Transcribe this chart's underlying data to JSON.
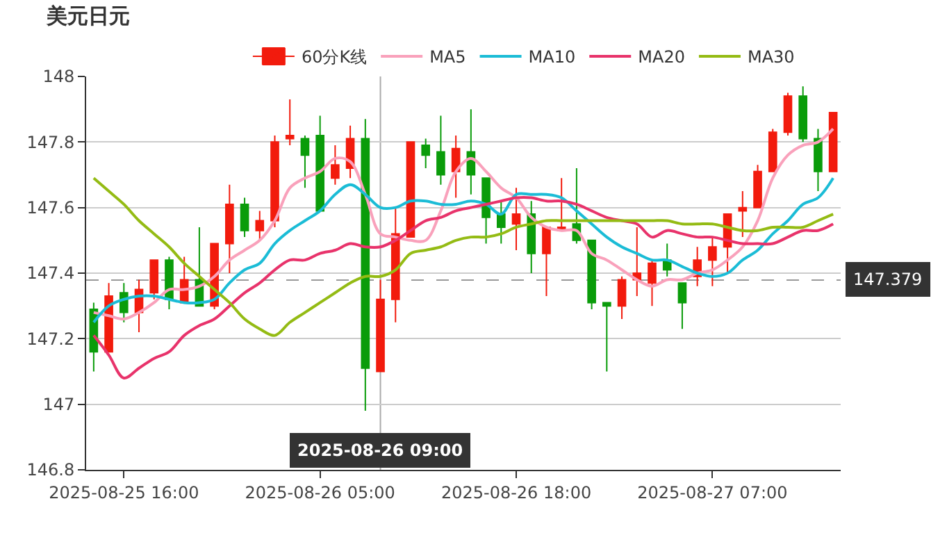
{
  "chart_data": {
    "type": "candlestick",
    "title": "美元日元",
    "x": [
      "2025-08-25T14:00",
      "2025-08-25T15:00",
      "2025-08-25T16:00",
      "2025-08-25T17:00",
      "2025-08-25T18:00",
      "2025-08-25T19:00",
      "2025-08-25T20:00",
      "2025-08-25T21:00",
      "2025-08-25T22:00",
      "2025-08-25T23:00",
      "2025-08-26T00:00",
      "2025-08-26T01:00",
      "2025-08-26T02:00",
      "2025-08-26T03:00",
      "2025-08-26T04:00",
      "2025-08-26T05:00",
      "2025-08-26T06:00",
      "2025-08-26T07:00",
      "2025-08-26T08:00",
      "2025-08-26T09:00",
      "2025-08-26T10:00",
      "2025-08-26T11:00",
      "2025-08-26T12:00",
      "2025-08-26T13:00",
      "2025-08-26T14:00",
      "2025-08-26T15:00",
      "2025-08-26T16:00",
      "2025-08-26T17:00",
      "2025-08-26T18:00",
      "2025-08-26T19:00",
      "2025-08-26T20:00",
      "2025-08-26T21:00",
      "2025-08-26T22:00",
      "2025-08-26T23:00",
      "2025-08-27T00:00",
      "2025-08-27T01:00",
      "2025-08-27T02:00",
      "2025-08-27T03:00",
      "2025-08-27T04:00",
      "2025-08-27T05:00",
      "2025-08-27T06:00",
      "2025-08-27T07:00",
      "2025-08-27T08:00",
      "2025-08-27T09:00",
      "2025-08-27T10:00",
      "2025-08-27T11:00",
      "2025-08-27T12:00",
      "2025-08-27T13:00",
      "2025-08-27T14:00",
      "2025-08-27T15:00"
    ],
    "xlim": [
      "2025-08-25T13:30",
      "2025-08-27T15:30"
    ],
    "xticks": [
      {
        "value": "2025-08-25T16:00",
        "label": "2025-08-25 16:00"
      },
      {
        "value": "2025-08-26T05:00",
        "label": "2025-08-26 05:00"
      },
      {
        "value": "2025-08-26T18:00",
        "label": "2025-08-26 18:00"
      },
      {
        "value": "2025-08-27T07:00",
        "label": "2025-08-27 07:00"
      }
    ],
    "ylim": [
      146.8,
      148
    ],
    "yticks": [
      146.8,
      147,
      147.2,
      147.4,
      147.6,
      147.8,
      148
    ],
    "grid": "y",
    "legend": "top",
    "marker": "none",
    "series": [
      {
        "name": "60分K线",
        "color": "#f21b0d",
        "colors": [
          "#0a9c0a",
          "#f21b0d",
          "#0a9c0a",
          "#f21b0d",
          "#f21b0d",
          "#0a9c0a",
          "#f21b0d",
          "#0a9c0a",
          "#f21b0d",
          "#f21b0d",
          "#0a9c0a",
          "#f21b0d",
          "#f21b0d",
          "#f21b0d",
          "#0a9c0a",
          "#0a9c0a",
          "#f21b0d",
          "#f21b0d",
          "#0a9c0a",
          "#f21b0d",
          "#f21b0d",
          "#f21b0d",
          "#0a9c0a",
          "#0a9c0a",
          "#f21b0d",
          "#0a9c0a",
          "#0a9c0a",
          "#0a9c0a",
          "#f21b0d",
          "#0a9c0a",
          "#f21b0d",
          "#f21b0d",
          "#0a9c0a",
          "#0a9c0a",
          "#0a9c0a",
          "#f21b0d",
          "#f21b0d",
          "#f21b0d",
          "#0a9c0a",
          "#0a9c0a",
          "#f21b0d",
          "#f21b0d",
          "#f21b0d",
          "#f21b0d",
          "#f21b0d",
          "#f21b0d",
          "#f21b0d",
          "#0a9c0a",
          "#0a9c0a",
          "#f21b0d"
        ],
        "ohlc": [
          [
            147.29,
            147.31,
            147.1,
            147.16
          ],
          [
            147.16,
            147.37,
            147.16,
            147.33
          ],
          [
            147.34,
            147.37,
            147.25,
            147.28
          ],
          [
            147.28,
            147.38,
            147.22,
            147.35
          ],
          [
            147.34,
            147.44,
            147.32,
            147.44
          ],
          [
            147.44,
            147.45,
            147.29,
            147.32
          ],
          [
            147.31,
            147.45,
            147.31,
            147.38
          ],
          [
            147.38,
            147.54,
            147.3,
            147.3
          ],
          [
            147.3,
            147.49,
            147.29,
            147.49
          ],
          [
            147.49,
            147.67,
            147.4,
            147.61
          ],
          [
            147.61,
            147.63,
            147.51,
            147.53
          ],
          [
            147.53,
            147.59,
            147.5,
            147.56
          ],
          [
            147.56,
            147.82,
            147.54,
            147.8
          ],
          [
            147.81,
            147.93,
            147.79,
            147.82
          ],
          [
            147.81,
            147.82,
            147.66,
            147.76
          ],
          [
            147.82,
            147.88,
            147.59,
            147.59
          ],
          [
            147.69,
            147.79,
            147.67,
            147.73
          ],
          [
            147.72,
            147.85,
            147.69,
            147.81
          ],
          [
            147.81,
            147.87,
            146.98,
            147.11
          ],
          [
            147.1,
            147.38,
            147.1,
            147.32
          ],
          [
            147.32,
            147.6,
            147.25,
            147.52
          ],
          [
            147.51,
            147.8,
            147.51,
            147.8
          ],
          [
            147.79,
            147.81,
            147.72,
            147.76
          ],
          [
            147.77,
            147.88,
            147.67,
            147.7
          ],
          [
            147.71,
            147.82,
            147.63,
            147.78
          ],
          [
            147.77,
            147.9,
            147.64,
            147.7
          ],
          [
            147.69,
            147.69,
            147.49,
            147.57
          ],
          [
            147.58,
            147.62,
            147.49,
            147.54
          ],
          [
            147.55,
            147.66,
            147.47,
            147.58
          ],
          [
            147.58,
            147.62,
            147.4,
            147.46
          ],
          [
            147.46,
            147.54,
            147.33,
            147.54
          ],
          [
            147.53,
            147.69,
            147.53,
            147.54
          ],
          [
            147.55,
            147.72,
            147.49,
            147.5
          ],
          [
            147.5,
            147.5,
            147.29,
            147.31
          ],
          [
            147.31,
            147.31,
            147.1,
            147.3
          ],
          [
            147.3,
            147.39,
            147.26,
            147.38
          ],
          [
            147.38,
            147.54,
            147.33,
            147.4
          ],
          [
            147.37,
            147.44,
            147.3,
            147.43
          ],
          [
            147.44,
            147.49,
            147.39,
            147.41
          ],
          [
            147.37,
            147.37,
            147.23,
            147.31
          ],
          [
            147.39,
            147.48,
            147.36,
            147.44
          ],
          [
            147.44,
            147.51,
            147.36,
            147.48
          ],
          [
            147.48,
            147.58,
            147.4,
            147.58
          ],
          [
            147.59,
            147.65,
            147.51,
            147.6
          ],
          [
            147.6,
            147.73,
            147.6,
            147.71
          ],
          [
            147.71,
            147.84,
            147.71,
            147.83
          ],
          [
            147.83,
            147.95,
            147.82,
            147.94
          ],
          [
            147.94,
            147.97,
            147.8,
            147.81
          ],
          [
            147.81,
            147.84,
            147.65,
            147.71
          ],
          [
            147.71,
            147.89,
            147.71,
            147.89
          ]
        ]
      },
      {
        "name": "MA5",
        "type": "line",
        "color": "#f9a1bb",
        "values": [
          147.28,
          147.27,
          147.26,
          147.28,
          147.31,
          147.35,
          147.35,
          147.36,
          147.39,
          147.44,
          147.47,
          147.5,
          147.56,
          147.66,
          147.69,
          147.71,
          147.75,
          147.74,
          147.64,
          147.52,
          147.51,
          147.5,
          147.5,
          147.59,
          147.71,
          147.75,
          147.71,
          147.66,
          147.63,
          147.57,
          147.54,
          147.53,
          147.53,
          147.46,
          147.44,
          147.41,
          147.38,
          147.36,
          147.38,
          147.38,
          147.4,
          147.41,
          147.44,
          147.48,
          147.56,
          147.69,
          147.76,
          147.79,
          147.8,
          147.84
        ]
      },
      {
        "name": "MA10",
        "type": "line",
        "color": "#1bbcd6",
        "values": [
          147.25,
          147.3,
          147.32,
          147.33,
          147.33,
          147.32,
          147.31,
          147.31,
          147.32,
          147.37,
          147.41,
          147.43,
          147.49,
          147.53,
          147.56,
          147.59,
          147.64,
          147.67,
          147.64,
          147.6,
          147.6,
          147.62,
          147.62,
          147.61,
          147.61,
          147.62,
          147.61,
          147.58,
          147.64,
          147.64,
          147.64,
          147.63,
          147.59,
          147.55,
          147.51,
          147.48,
          147.46,
          147.44,
          147.44,
          147.42,
          147.4,
          147.39,
          147.4,
          147.44,
          147.47,
          147.52,
          147.56,
          147.61,
          147.63,
          147.69
        ]
      },
      {
        "name": "MA20",
        "type": "line",
        "color": "#e8336b",
        "values": [
          147.21,
          147.15,
          147.08,
          147.11,
          147.14,
          147.16,
          147.21,
          147.24,
          147.26,
          147.3,
          147.34,
          147.37,
          147.41,
          147.44,
          147.44,
          147.46,
          147.47,
          147.49,
          147.48,
          147.48,
          147.5,
          147.53,
          147.56,
          147.57,
          147.59,
          147.6,
          147.61,
          147.62,
          147.63,
          147.63,
          147.62,
          147.62,
          147.61,
          147.59,
          147.57,
          147.56,
          147.55,
          147.51,
          147.53,
          147.52,
          147.51,
          147.51,
          147.5,
          147.49,
          147.49,
          147.49,
          147.51,
          147.53,
          147.53,
          147.55
        ]
      },
      {
        "name": "MA30",
        "type": "line",
        "color": "#94bb14",
        "values": [
          147.69,
          147.65,
          147.61,
          147.56,
          147.52,
          147.48,
          147.43,
          147.39,
          147.35,
          147.31,
          147.26,
          147.23,
          147.21,
          147.25,
          147.28,
          147.31,
          147.34,
          147.37,
          147.39,
          147.39,
          147.41,
          147.46,
          147.47,
          147.48,
          147.5,
          147.51,
          147.51,
          147.52,
          147.54,
          147.55,
          147.56,
          147.56,
          147.56,
          147.56,
          147.56,
          147.56,
          147.56,
          147.56,
          147.56,
          147.55,
          147.55,
          147.55,
          147.54,
          147.53,
          147.53,
          147.54,
          147.54,
          147.54,
          147.56,
          147.58
        ]
      }
    ],
    "ref_lines": [
      {
        "axis": "y",
        "value": 147.379,
        "label": "147.379",
        "color": "#999999",
        "line_style": "dashed"
      },
      {
        "axis": "x",
        "value": "2025-08-26T09:00",
        "label": "2025-08-26 09:00",
        "color": "#aaaaaa",
        "line_style": "solid"
      }
    ]
  }
}
